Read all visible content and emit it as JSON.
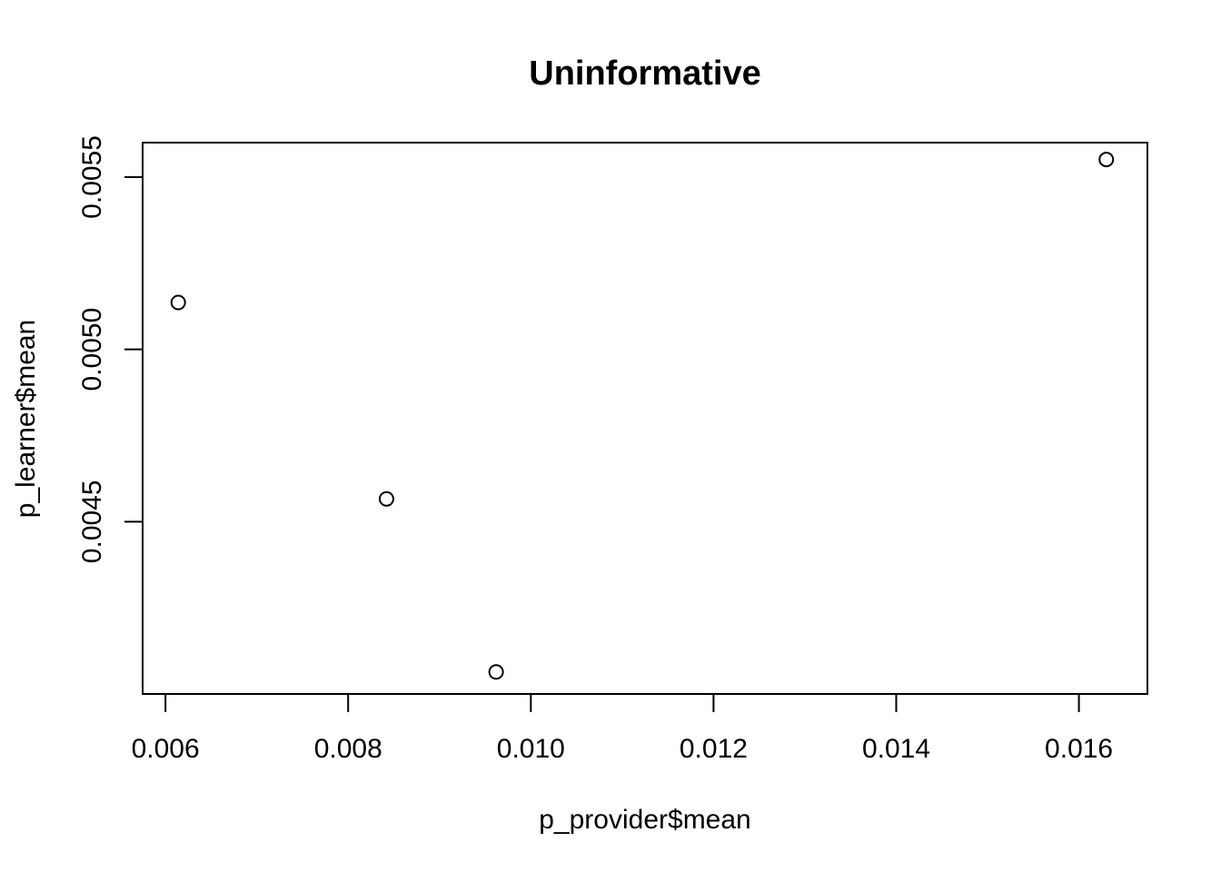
{
  "chart_data": {
    "type": "scatter",
    "title": "Uninformative",
    "xlabel": "p_provider$mean",
    "ylabel": "p_learner$mean",
    "xlim": [
      0.00575,
      0.01675
    ],
    "ylim": [
      0.004,
      0.0056
    ],
    "xticks": [
      0.006,
      0.008,
      0.01,
      0.012,
      0.014,
      0.016
    ],
    "xtick_labels": [
      "0.006",
      "0.008",
      "0.010",
      "0.012",
      "0.014",
      "0.016"
    ],
    "yticks": [
      0.0045,
      0.005,
      0.0055
    ],
    "ytick_labels": [
      "0.0045",
      "0.0050",
      "0.0055"
    ],
    "grid": false,
    "marker": "open-circle",
    "series": [
      {
        "x": [
          0.00614,
          0.00842,
          0.00962,
          0.0163
        ],
        "y": [
          0.005136,
          0.004566,
          0.004064,
          0.005551
        ]
      }
    ]
  }
}
